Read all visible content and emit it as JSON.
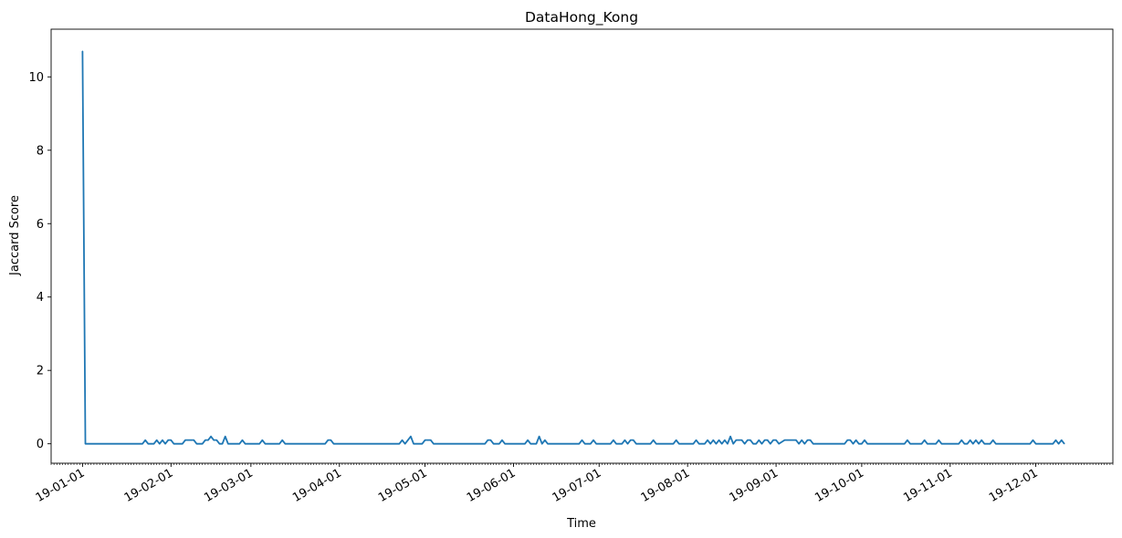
{
  "chart_data": {
    "type": "line",
    "title": "DataHong_Kong",
    "xlabel": "Time",
    "ylabel": "Jaccard Score",
    "x_range": [
      "2018-12-21",
      "2019-12-28"
    ],
    "ylim": [
      -0.53,
      11.3
    ],
    "y_ticks": [
      0,
      2,
      4,
      6,
      8,
      10
    ],
    "x_ticks": [
      {
        "date": "2019-01-01",
        "label": "19-01-01"
      },
      {
        "date": "2019-02-01",
        "label": "19-02-01"
      },
      {
        "date": "2019-03-01",
        "label": "19-03-01"
      },
      {
        "date": "2019-04-01",
        "label": "19-04-01"
      },
      {
        "date": "2019-05-01",
        "label": "19-05-01"
      },
      {
        "date": "2019-06-01",
        "label": "19-06-01"
      },
      {
        "date": "2019-07-01",
        "label": "19-07-01"
      },
      {
        "date": "2019-08-01",
        "label": "19-08-01"
      },
      {
        "date": "2019-09-01",
        "label": "19-09-01"
      },
      {
        "date": "2019-10-01",
        "label": "19-10-01"
      },
      {
        "date": "2019-11-01",
        "label": "19-11-01"
      },
      {
        "date": "2019-12-01",
        "label": "19-12-01"
      }
    ],
    "minor_ticks": "daily",
    "grid": false,
    "legend": "none",
    "line_color": "#1f77b4",
    "series": [
      {
        "points": [
          [
            "2019-01-01",
            10.7
          ],
          [
            "2019-01-02",
            0.0
          ],
          [
            "2019-01-22",
            0.0
          ],
          [
            "2019-01-23",
            0.1
          ],
          [
            "2019-01-24",
            0.0
          ],
          [
            "2019-01-26",
            0.0
          ],
          [
            "2019-01-27",
            0.1
          ],
          [
            "2019-01-28",
            0.0
          ],
          [
            "2019-01-29",
            0.1
          ],
          [
            "2019-01-30",
            0.0
          ],
          [
            "2019-01-31",
            0.1
          ],
          [
            "2019-02-01",
            0.1
          ],
          [
            "2019-02-02",
            0.0
          ],
          [
            "2019-02-05",
            0.0
          ],
          [
            "2019-02-06",
            0.1
          ],
          [
            "2019-02-09",
            0.1
          ],
          [
            "2019-02-10",
            0.0
          ],
          [
            "2019-02-12",
            0.0
          ],
          [
            "2019-02-13",
            0.1
          ],
          [
            "2019-02-14",
            0.1
          ],
          [
            "2019-02-15",
            0.2
          ],
          [
            "2019-02-16",
            0.1
          ],
          [
            "2019-02-17",
            0.1
          ],
          [
            "2019-02-18",
            0.0
          ],
          [
            "2019-02-19",
            0.0
          ],
          [
            "2019-02-20",
            0.2
          ],
          [
            "2019-02-21",
            0.0
          ],
          [
            "2019-02-25",
            0.0
          ],
          [
            "2019-02-26",
            0.1
          ],
          [
            "2019-02-27",
            0.0
          ],
          [
            "2019-03-04",
            0.0
          ],
          [
            "2019-03-05",
            0.1
          ],
          [
            "2019-03-06",
            0.0
          ],
          [
            "2019-03-11",
            0.0
          ],
          [
            "2019-03-12",
            0.1
          ],
          [
            "2019-03-13",
            0.0
          ],
          [
            "2019-03-27",
            0.0
          ],
          [
            "2019-03-28",
            0.1
          ],
          [
            "2019-03-29",
            0.1
          ],
          [
            "2019-03-30",
            0.0
          ],
          [
            "2019-04-22",
            0.0
          ],
          [
            "2019-04-23",
            0.1
          ],
          [
            "2019-04-24",
            0.0
          ],
          [
            "2019-04-25",
            0.1
          ],
          [
            "2019-04-26",
            0.2
          ],
          [
            "2019-04-27",
            0.0
          ],
          [
            "2019-04-30",
            0.0
          ],
          [
            "2019-05-01",
            0.1
          ],
          [
            "2019-05-03",
            0.1
          ],
          [
            "2019-05-04",
            0.0
          ],
          [
            "2019-05-22",
            0.0
          ],
          [
            "2019-05-23",
            0.1
          ],
          [
            "2019-05-24",
            0.1
          ],
          [
            "2019-05-25",
            0.0
          ],
          [
            "2019-05-27",
            0.0
          ],
          [
            "2019-05-28",
            0.1
          ],
          [
            "2019-05-29",
            0.0
          ],
          [
            "2019-06-05",
            0.0
          ],
          [
            "2019-06-06",
            0.1
          ],
          [
            "2019-06-07",
            0.0
          ],
          [
            "2019-06-09",
            0.0
          ],
          [
            "2019-06-10",
            0.2
          ],
          [
            "2019-06-11",
            0.0
          ],
          [
            "2019-06-12",
            0.1
          ],
          [
            "2019-06-13",
            0.0
          ],
          [
            "2019-06-24",
            0.0
          ],
          [
            "2019-06-25",
            0.1
          ],
          [
            "2019-06-26",
            0.0
          ],
          [
            "2019-06-28",
            0.0
          ],
          [
            "2019-06-29",
            0.1
          ],
          [
            "2019-06-30",
            0.0
          ],
          [
            "2019-07-05",
            0.0
          ],
          [
            "2019-07-06",
            0.1
          ],
          [
            "2019-07-07",
            0.0
          ],
          [
            "2019-07-09",
            0.0
          ],
          [
            "2019-07-10",
            0.1
          ],
          [
            "2019-07-11",
            0.0
          ],
          [
            "2019-07-12",
            0.1
          ],
          [
            "2019-07-13",
            0.1
          ],
          [
            "2019-07-14",
            0.0
          ],
          [
            "2019-07-19",
            0.0
          ],
          [
            "2019-07-20",
            0.1
          ],
          [
            "2019-07-21",
            0.0
          ],
          [
            "2019-07-27",
            0.0
          ],
          [
            "2019-07-28",
            0.1
          ],
          [
            "2019-07-29",
            0.0
          ],
          [
            "2019-08-03",
            0.0
          ],
          [
            "2019-08-04",
            0.1
          ],
          [
            "2019-08-05",
            0.0
          ],
          [
            "2019-08-07",
            0.0
          ],
          [
            "2019-08-08",
            0.1
          ],
          [
            "2019-08-09",
            0.0
          ],
          [
            "2019-08-10",
            0.1
          ],
          [
            "2019-08-11",
            0.0
          ],
          [
            "2019-08-12",
            0.1
          ],
          [
            "2019-08-13",
            0.0
          ],
          [
            "2019-08-14",
            0.1
          ],
          [
            "2019-08-15",
            0.0
          ],
          [
            "2019-08-16",
            0.2
          ],
          [
            "2019-08-17",
            0.0
          ],
          [
            "2019-08-18",
            0.1
          ],
          [
            "2019-08-20",
            0.1
          ],
          [
            "2019-08-21",
            0.0
          ],
          [
            "2019-08-22",
            0.1
          ],
          [
            "2019-08-23",
            0.1
          ],
          [
            "2019-08-24",
            0.0
          ],
          [
            "2019-08-25",
            0.0
          ],
          [
            "2019-08-26",
            0.1
          ],
          [
            "2019-08-27",
            0.0
          ],
          [
            "2019-08-28",
            0.1
          ],
          [
            "2019-08-29",
            0.1
          ],
          [
            "2019-08-30",
            0.0
          ],
          [
            "2019-08-31",
            0.1
          ],
          [
            "2019-09-01",
            0.1
          ],
          [
            "2019-09-02",
            0.0
          ],
          [
            "2019-09-04",
            0.1
          ],
          [
            "2019-09-05",
            0.1
          ],
          [
            "2019-09-06",
            0.1
          ],
          [
            "2019-09-07",
            0.1
          ],
          [
            "2019-09-08",
            0.1
          ],
          [
            "2019-09-09",
            0.0
          ],
          [
            "2019-09-10",
            0.1
          ],
          [
            "2019-09-11",
            0.0
          ],
          [
            "2019-09-12",
            0.1
          ],
          [
            "2019-09-13",
            0.1
          ],
          [
            "2019-09-14",
            0.0
          ],
          [
            "2019-09-25",
            0.0
          ],
          [
            "2019-09-26",
            0.1
          ],
          [
            "2019-09-27",
            0.1
          ],
          [
            "2019-09-28",
            0.0
          ],
          [
            "2019-09-29",
            0.1
          ],
          [
            "2019-09-30",
            0.0
          ],
          [
            "2019-10-01",
            0.0
          ],
          [
            "2019-10-02",
            0.1
          ],
          [
            "2019-10-03",
            0.0
          ],
          [
            "2019-10-04",
            0.0
          ],
          [
            "2019-10-05",
            0.0
          ],
          [
            "2019-10-16",
            0.0
          ],
          [
            "2019-10-17",
            0.1
          ],
          [
            "2019-10-18",
            0.0
          ],
          [
            "2019-10-22",
            0.0
          ],
          [
            "2019-10-23",
            0.1
          ],
          [
            "2019-10-24",
            0.0
          ],
          [
            "2019-10-27",
            0.0
          ],
          [
            "2019-10-28",
            0.1
          ],
          [
            "2019-10-29",
            0.0
          ],
          [
            "2019-11-04",
            0.0
          ],
          [
            "2019-11-05",
            0.1
          ],
          [
            "2019-11-06",
            0.0
          ],
          [
            "2019-11-07",
            0.0
          ],
          [
            "2019-11-08",
            0.1
          ],
          [
            "2019-11-09",
            0.0
          ],
          [
            "2019-11-10",
            0.1
          ],
          [
            "2019-11-11",
            0.0
          ],
          [
            "2019-11-12",
            0.1
          ],
          [
            "2019-11-13",
            0.0
          ],
          [
            "2019-11-14",
            0.0
          ],
          [
            "2019-11-15",
            0.0
          ],
          [
            "2019-11-16",
            0.1
          ],
          [
            "2019-11-17",
            0.0
          ],
          [
            "2019-11-29",
            0.0
          ],
          [
            "2019-11-30",
            0.1
          ],
          [
            "2019-12-01",
            0.0
          ],
          [
            "2019-12-07",
            0.0
          ],
          [
            "2019-12-08",
            0.1
          ],
          [
            "2019-12-09",
            0.0
          ],
          [
            "2019-12-10",
            0.1
          ],
          [
            "2019-12-11",
            0.0
          ]
        ]
      }
    ]
  }
}
